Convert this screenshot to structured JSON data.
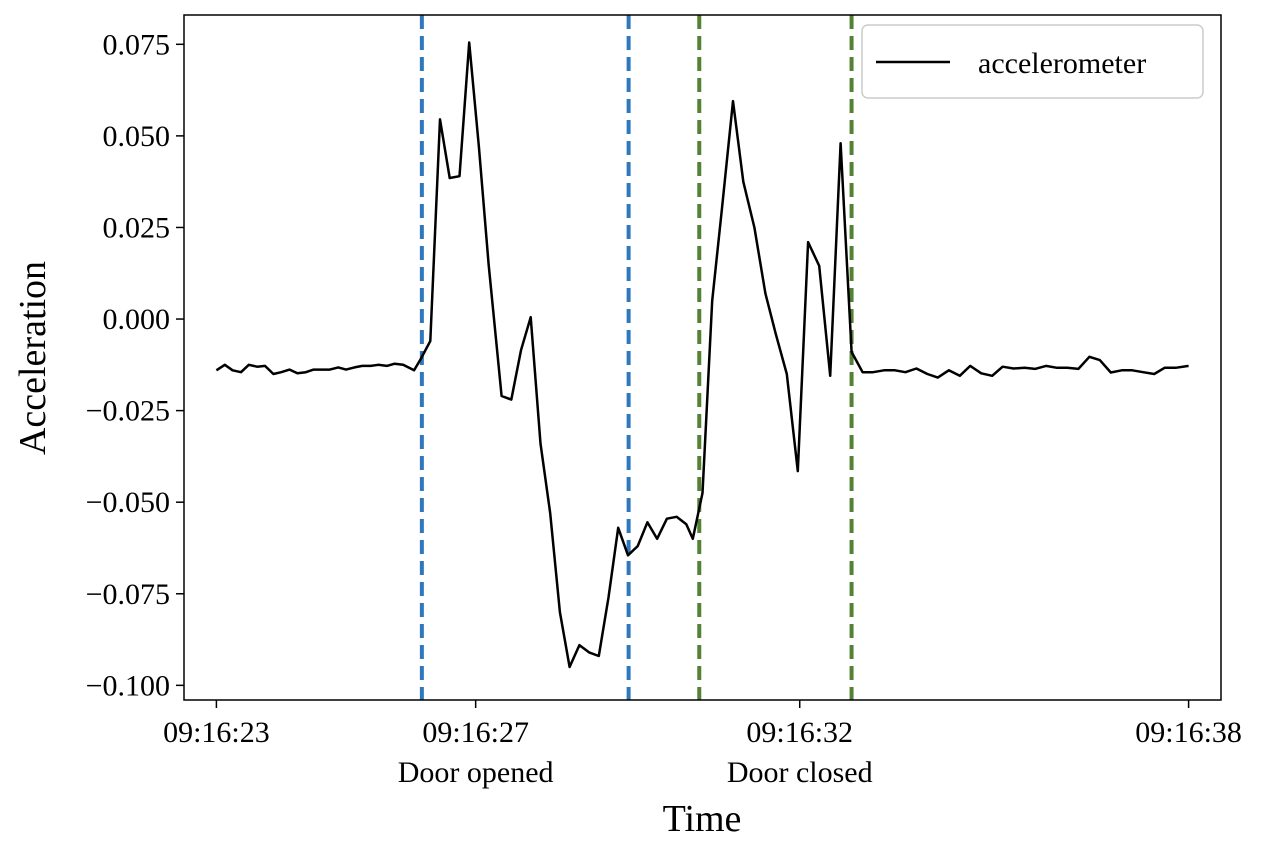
{
  "chart_data": {
    "type": "line",
    "xlabel": "Time",
    "ylabel": "Acceleration",
    "xlim": [
      -0.5,
      15.5
    ],
    "ylim": [
      -0.104,
      0.083
    ],
    "x_ticks": [
      {
        "x": 0,
        "label": "09:16:23"
      },
      {
        "x": 4,
        "label": "09:16:27"
      },
      {
        "x": 9,
        "label": "09:16:32"
      },
      {
        "x": 15,
        "label": "09:16:38"
      }
    ],
    "y_ticks": [
      {
        "y": 0.075,
        "label": "0.075"
      },
      {
        "y": 0.05,
        "label": "0.050"
      },
      {
        "y": 0.025,
        "label": "0.025"
      },
      {
        "y": 0.0,
        "label": "0.000"
      },
      {
        "y": -0.025,
        "label": "−0.025"
      },
      {
        "y": -0.05,
        "label": "−0.050"
      },
      {
        "y": -0.075,
        "label": "−0.075"
      },
      {
        "y": -0.1,
        "label": "−0.100"
      }
    ],
    "legend": {
      "position": "top-right",
      "entries": [
        "accelerometer"
      ]
    },
    "event_labels": [
      {
        "text": "Door opened",
        "x": 4.0
      },
      {
        "text": "Door closed",
        "x": 9.0
      }
    ],
    "vlines": [
      {
        "x": 3.17,
        "color": "#2f78bb",
        "group": "Door opened"
      },
      {
        "x": 6.36,
        "color": "#2f78bb",
        "group": "Door opened"
      },
      {
        "x": 7.45,
        "color": "#548235",
        "group": "Door closed"
      },
      {
        "x": 9.8,
        "color": "#548235",
        "group": "Door closed"
      }
    ],
    "series": [
      {
        "name": "accelerometer",
        "color": "#000000",
        "points": [
          [
            0.0,
            -0.014
          ],
          [
            0.13,
            -0.0125
          ],
          [
            0.25,
            -0.014
          ],
          [
            0.38,
            -0.0145
          ],
          [
            0.5,
            -0.0125
          ],
          [
            0.63,
            -0.013
          ],
          [
            0.75,
            -0.0128
          ],
          [
            0.88,
            -0.015
          ],
          [
            1.0,
            -0.0145
          ],
          [
            1.13,
            -0.0138
          ],
          [
            1.25,
            -0.0148
          ],
          [
            1.38,
            -0.0145
          ],
          [
            1.5,
            -0.0138
          ],
          [
            1.63,
            -0.0138
          ],
          [
            1.75,
            -0.0138
          ],
          [
            1.88,
            -0.0132
          ],
          [
            2.0,
            -0.0138
          ],
          [
            2.13,
            -0.0132
          ],
          [
            2.25,
            -0.0128
          ],
          [
            2.38,
            -0.0128
          ],
          [
            2.5,
            -0.0125
          ],
          [
            2.63,
            -0.0128
          ],
          [
            2.75,
            -0.0122
          ],
          [
            2.88,
            -0.0125
          ],
          [
            3.05,
            -0.014
          ],
          [
            3.15,
            -0.011
          ],
          [
            3.3,
            -0.006
          ],
          [
            3.45,
            0.0545
          ],
          [
            3.6,
            0.0385
          ],
          [
            3.75,
            0.039
          ],
          [
            3.9,
            0.0755
          ],
          [
            4.05,
            0.047
          ],
          [
            4.2,
            0.015
          ],
          [
            4.4,
            -0.021
          ],
          [
            4.55,
            -0.022
          ],
          [
            4.7,
            -0.0085
          ],
          [
            4.85,
            0.0005
          ],
          [
            5.0,
            -0.034
          ],
          [
            5.15,
            -0.053
          ],
          [
            5.3,
            -0.08
          ],
          [
            5.45,
            -0.095
          ],
          [
            5.6,
            -0.089
          ],
          [
            5.75,
            -0.091
          ],
          [
            5.9,
            -0.092
          ],
          [
            6.05,
            -0.076
          ],
          [
            6.2,
            -0.057
          ],
          [
            6.35,
            -0.0645
          ],
          [
            6.5,
            -0.062
          ],
          [
            6.65,
            -0.0555
          ],
          [
            6.8,
            -0.06
          ],
          [
            6.95,
            -0.0545
          ],
          [
            7.1,
            -0.054
          ],
          [
            7.25,
            -0.056
          ],
          [
            7.35,
            -0.06
          ],
          [
            7.5,
            -0.0475
          ],
          [
            7.65,
            0.005
          ],
          [
            7.8,
            0.03
          ],
          [
            7.97,
            0.0595
          ],
          [
            8.13,
            0.0375
          ],
          [
            8.3,
            0.025
          ],
          [
            8.47,
            0.007
          ],
          [
            8.63,
            -0.004
          ],
          [
            8.8,
            -0.015
          ],
          [
            8.97,
            -0.0415
          ],
          [
            9.13,
            0.021
          ],
          [
            9.3,
            0.0145
          ],
          [
            9.47,
            -0.0155
          ],
          [
            9.63,
            0.048
          ],
          [
            9.8,
            -0.009
          ],
          [
            9.97,
            -0.0145
          ],
          [
            10.13,
            -0.0145
          ],
          [
            10.3,
            -0.014
          ],
          [
            10.47,
            -0.014
          ],
          [
            10.63,
            -0.0145
          ],
          [
            10.8,
            -0.0135
          ],
          [
            10.97,
            -0.015
          ],
          [
            11.13,
            -0.016
          ],
          [
            11.3,
            -0.014
          ],
          [
            11.47,
            -0.0155
          ],
          [
            11.63,
            -0.0128
          ],
          [
            11.8,
            -0.0148
          ],
          [
            11.97,
            -0.0155
          ],
          [
            12.13,
            -0.013
          ],
          [
            12.3,
            -0.0135
          ],
          [
            12.47,
            -0.0133
          ],
          [
            12.63,
            -0.0136
          ],
          [
            12.8,
            -0.0128
          ],
          [
            12.97,
            -0.0133
          ],
          [
            13.13,
            -0.0133
          ],
          [
            13.3,
            -0.0136
          ],
          [
            13.47,
            -0.0103
          ],
          [
            13.63,
            -0.0112
          ],
          [
            13.8,
            -0.0146
          ],
          [
            13.97,
            -0.014
          ],
          [
            14.13,
            -0.014
          ],
          [
            14.3,
            -0.0145
          ],
          [
            14.47,
            -0.015
          ],
          [
            14.63,
            -0.0133
          ],
          [
            14.8,
            -0.0133
          ],
          [
            15.0,
            -0.0128
          ]
        ]
      }
    ]
  }
}
